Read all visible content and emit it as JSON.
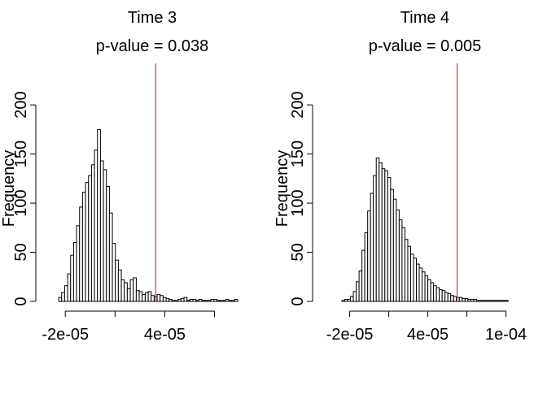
{
  "chart_data": [
    {
      "type": "bar",
      "title": "Time 3",
      "subtitle": "p-value = 0.038",
      "xlabel": "",
      "ylabel": "Frequency",
      "y_ticks": [
        0,
        50,
        100,
        150,
        200
      ],
      "x_ticks": [
        {
          "value": -2e-05,
          "label": "-2e-05"
        },
        {
          "value": 1e-05,
          "label": ""
        },
        {
          "value": 4e-05,
          "label": "4e-05"
        },
        {
          "value": 7e-05,
          "label": ""
        }
      ],
      "xlim": [
        -2.6e-05,
        8.3e-05
      ],
      "ylim": [
        0,
        210
      ],
      "bin_start": -2.4e-05,
      "bin_width": 1.8e-06,
      "values": [
        4,
        9,
        16,
        28,
        47,
        60,
        77,
        96,
        111,
        121,
        128,
        139,
        154,
        175,
        143,
        134,
        117,
        90,
        59,
        42,
        32,
        22,
        19,
        13,
        22,
        24,
        11,
        10,
        7,
        9,
        10,
        6,
        5,
        7,
        6,
        4,
        3,
        2,
        1,
        1,
        2,
        3,
        4,
        1,
        2,
        2,
        1,
        2,
        1,
        1,
        1,
        2,
        2,
        1,
        1,
        1,
        2,
        1,
        1,
        2
      ],
      "reference_line": {
        "value": 3.45e-05,
        "color": "#e8333a"
      }
    },
    {
      "type": "bar",
      "title": "Time 4",
      "subtitle": "p-value = 0.005",
      "xlabel": "",
      "ylabel": "Frequency",
      "y_ticks": [
        0,
        50,
        100,
        150,
        200
      ],
      "x_ticks": [
        {
          "value": -2e-05,
          "label": "-2e-05"
        },
        {
          "value": 1e-05,
          "label": ""
        },
        {
          "value": 4e-05,
          "label": "4e-05"
        },
        {
          "value": 7e-05,
          "label": ""
        },
        {
          "value": 0.0001,
          "label": "1e-04"
        }
      ],
      "xlim": [
        -3.1e-05,
        0.000104
      ],
      "ylim": [
        0,
        210
      ],
      "bin_start": -2.6e-05,
      "bin_width": 2.2e-06,
      "values": [
        1,
        2,
        2,
        5,
        10,
        20,
        31,
        52,
        70,
        92,
        110,
        128,
        146,
        141,
        135,
        133,
        126,
        114,
        104,
        93,
        83,
        75,
        63,
        56,
        48,
        44,
        38,
        34,
        30,
        26,
        22,
        19,
        16,
        14,
        12,
        11,
        9,
        8,
        6,
        5,
        4,
        4,
        3,
        3,
        2,
        2,
        2,
        1,
        1,
        1,
        1,
        1,
        1,
        1,
        1,
        1,
        1,
        1
      ],
      "reference_line": {
        "value": 6.25e-05,
        "color": "#e8333a"
      }
    }
  ]
}
